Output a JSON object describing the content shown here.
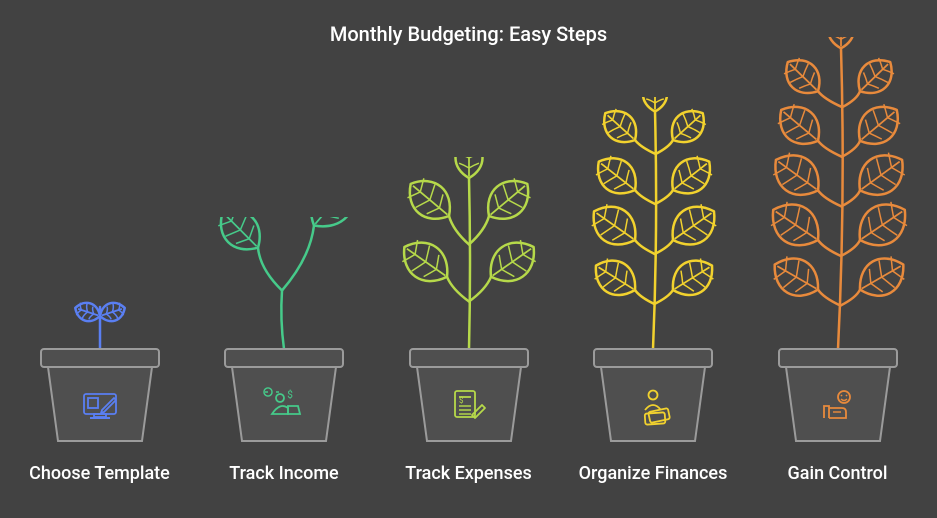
{
  "type": "infographic",
  "background_color": "#424242",
  "title": {
    "text": "Monthly Budgeting: Easy Steps",
    "color": "#ffffff",
    "fontsize": 20
  },
  "pot": {
    "outline_color": "#9b9b9b",
    "fill_color": "#4f4f4f",
    "stroke_width": 2,
    "width": 118,
    "height": 92
  },
  "label_style": {
    "color": "#ffffff",
    "fontsize": 18
  },
  "plant_stroke_width": 2.5,
  "steps": [
    {
      "label": "Choose Template",
      "color": "#5a7ff2",
      "plant_height": 60,
      "plant_variant": "sprout"
    },
    {
      "label": "Track Income",
      "color": "#46c a8a",
      "_color_fix": "#46ca8a",
      "plant_height": 130,
      "plant_variant": "seedling"
    },
    {
      "label": "Track Expenses",
      "color": "#b6d94a",
      "plant_height": 190,
      "plant_variant": "young"
    },
    {
      "label": "Organize Finances",
      "color": "#f2d22e",
      "plant_height": 250,
      "plant_variant": "growing"
    },
    {
      "label": "Gain Control",
      "color": "#e88a3c",
      "plant_height": 310,
      "plant_variant": "mature"
    }
  ],
  "icons": [
    "template-icon",
    "income-icon",
    "expenses-icon",
    "organize-icon",
    "control-icon"
  ]
}
